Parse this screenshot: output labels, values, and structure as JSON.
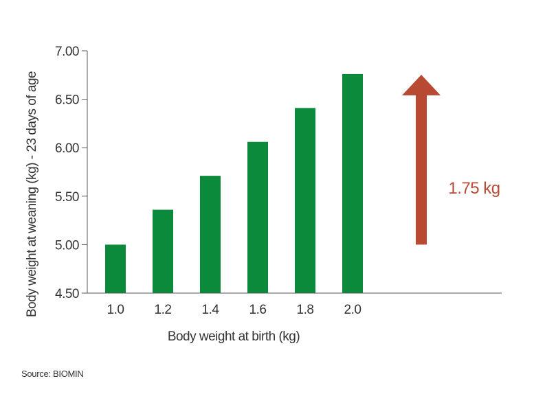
{
  "chart_data": {
    "type": "bar",
    "categories": [
      "1.0",
      "1.2",
      "1.4",
      "1.6",
      "1.8",
      "2.0"
    ],
    "values": [
      5.0,
      5.36,
      5.71,
      6.06,
      6.41,
      6.76
    ],
    "title": "",
    "xlabel": "Body weight at birth (kg)",
    "ylabel": "Body weight at weaning (kg) - 23 days of age",
    "ylim": [
      4.5,
      7.0
    ],
    "yticks": [
      "4.50",
      "5.00",
      "5.50",
      "6.00",
      "6.50",
      "7.00"
    ],
    "grid": false,
    "legend": "none",
    "bar_color": "#0b8a3c",
    "annotation": {
      "text": "1.75 kg",
      "arrow": "up",
      "from_value": 5.0,
      "to_value": 6.76,
      "color": "#b84a33"
    }
  },
  "source": "Source: BIOMIN"
}
